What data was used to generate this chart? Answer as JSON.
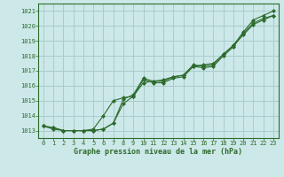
{
  "title": "Graphe pression niveau de la mer (hPa)",
  "bg_color": "#cce8e8",
  "grid_color": "#aacccc",
  "line_color": "#2d6b2d",
  "marker_color": "#2d6b2d",
  "xlim": [
    -0.5,
    23.5
  ],
  "ylim": [
    1012.5,
    1021.5
  ],
  "yticks": [
    1013,
    1014,
    1015,
    1016,
    1017,
    1018,
    1019,
    1020,
    1021
  ],
  "xticks": [
    0,
    1,
    2,
    3,
    4,
    5,
    6,
    7,
    8,
    9,
    10,
    11,
    12,
    13,
    14,
    15,
    16,
    17,
    18,
    19,
    20,
    21,
    22,
    23
  ],
  "series": [
    [
      1013.3,
      1013.2,
      1013.0,
      1013.0,
      1013.0,
      1013.0,
      1013.1,
      1013.5,
      1014.8,
      1015.3,
      1016.4,
      1016.2,
      1016.2,
      1016.5,
      1016.6,
      1017.3,
      1017.2,
      1017.3,
      1018.0,
      1018.6,
      1019.5,
      1020.2,
      1020.5,
      1020.7
    ],
    [
      1013.3,
      1013.1,
      1013.0,
      1013.0,
      1013.0,
      1013.1,
      1014.0,
      1015.0,
      1015.2,
      1015.3,
      1016.2,
      1016.3,
      1016.4,
      1016.6,
      1016.7,
      1017.3,
      1017.4,
      1017.5,
      1018.1,
      1018.7,
      1019.4,
      1020.1,
      1020.4,
      1020.7
    ],
    [
      1013.3,
      1013.2,
      1013.0,
      1013.0,
      1013.0,
      1013.0,
      1013.1,
      1013.5,
      1015.1,
      1015.4,
      1016.5,
      1016.3,
      1016.3,
      1016.6,
      1016.7,
      1017.4,
      1017.3,
      1017.4,
      1018.1,
      1018.7,
      1019.6,
      1020.4,
      1020.7,
      1021.0
    ]
  ],
  "ylabel_fontsize": 5.5,
  "xlabel_fontsize": 6.0,
  "tick_fontsize": 5.0
}
